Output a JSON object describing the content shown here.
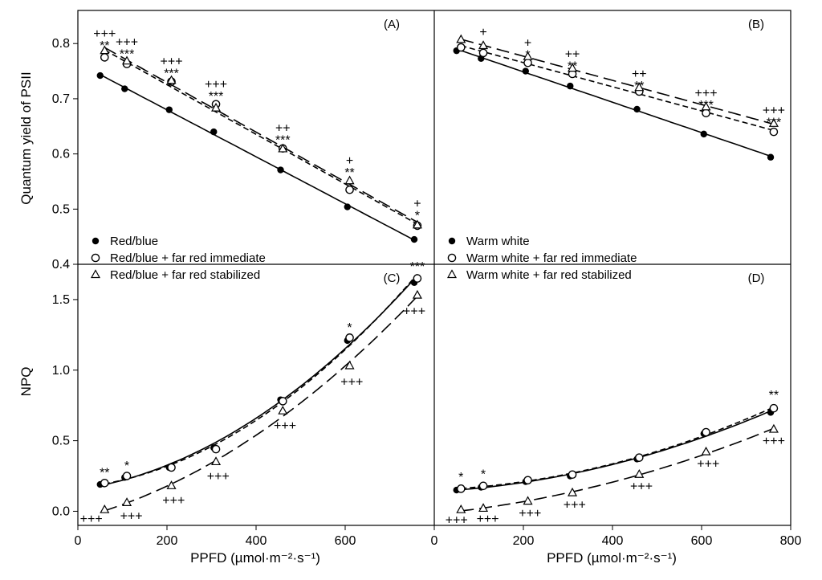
{
  "figure": {
    "ylabel_top": "Quantum yield of PSII",
    "ylabel_bottom": "NPQ",
    "xlabel_left": "PPFD (µmol·m⁻²·s⁻¹)",
    "xlabel_right": "PPFD (µmol·m⁻²·s⁻¹)",
    "x_ticks": [
      0,
      200,
      400,
      600,
      800
    ],
    "top_y_ticks": [
      0.4,
      0.5,
      0.6,
      0.7,
      0.8
    ],
    "bottom_y_ticks": [
      0.0,
      0.5,
      1.0,
      1.5
    ],
    "line_color": "#000000"
  },
  "chart_data": [
    {
      "panel": "(A)",
      "type": "scatter",
      "xlim": [
        0,
        800
      ],
      "ylim": [
        0.4,
        0.86
      ],
      "legend": "bottom-left",
      "series": [
        {
          "name": "Red/blue",
          "marker": "filled-circle",
          "line": "solid",
          "x": [
            50,
            105,
            205,
            305,
            455,
            605,
            755
          ],
          "y": [
            0.742,
            0.718,
            0.68,
            0.64,
            0.571,
            0.504,
            0.445
          ]
        },
        {
          "name": "Red/blue + far red immediate",
          "marker": "open-circle",
          "line": "short-dash",
          "x": [
            60,
            110,
            210,
            310,
            460,
            610,
            762
          ],
          "y": [
            0.775,
            0.763,
            0.731,
            0.69,
            0.61,
            0.535,
            0.47
          ]
        },
        {
          "name": "Red/blue + far red stabilized",
          "marker": "open-triangle",
          "line": "long-dash",
          "x": [
            60,
            110,
            210,
            310,
            460,
            610,
            762
          ],
          "y": [
            0.787,
            0.768,
            0.733,
            0.683,
            0.609,
            0.551,
            0.471
          ]
        }
      ],
      "annotations": [
        {
          "x": 60,
          "lines": [
            "+++",
            "**"
          ],
          "top": 0.825
        },
        {
          "x": 110,
          "lines": [
            "+++",
            "***"
          ],
          "top": 0.81
        },
        {
          "x": 210,
          "lines": [
            "+++",
            "***"
          ],
          "top": 0.775
        },
        {
          "x": 310,
          "lines": [
            "+++",
            "***"
          ],
          "top": 0.733
        },
        {
          "x": 460,
          "lines": [
            "++",
            "***"
          ],
          "top": 0.654
        },
        {
          "x": 610,
          "lines": [
            "+",
            "**"
          ],
          "top": 0.595
        },
        {
          "x": 762,
          "lines": [
            "+",
            "*"
          ],
          "top": 0.517
        }
      ]
    },
    {
      "panel": "(B)",
      "type": "scatter",
      "xlim": [
        0,
        800
      ],
      "ylim": [
        0.4,
        0.86
      ],
      "legend": "bottom-left",
      "series": [
        {
          "name": "Warm white",
          "marker": "filled-circle",
          "line": "solid",
          "x": [
            50,
            105,
            205,
            305,
            455,
            605,
            755
          ],
          "y": [
            0.787,
            0.773,
            0.75,
            0.723,
            0.681,
            0.636,
            0.594
          ]
        },
        {
          "name": "Warm white + far red immediate",
          "marker": "open-circle",
          "line": "short-dash",
          "x": [
            60,
            110,
            210,
            310,
            460,
            610,
            762
          ],
          "y": [
            0.793,
            0.783,
            0.765,
            0.745,
            0.713,
            0.674,
            0.64
          ]
        },
        {
          "name": "Warm white + far red stabilized",
          "marker": "open-triangle",
          "line": "long-dash",
          "x": [
            60,
            110,
            210,
            310,
            460,
            610,
            762
          ],
          "y": [
            0.807,
            0.796,
            0.776,
            0.755,
            0.72,
            0.685,
            0.655
          ]
        }
      ],
      "annotations": [
        {
          "x": 110,
          "lines": [
            "+"
          ],
          "top": 0.828
        },
        {
          "x": 210,
          "lines": [
            "+",
            "*"
          ],
          "top": 0.808
        },
        {
          "x": 310,
          "lines": [
            "++",
            "**"
          ],
          "top": 0.788
        },
        {
          "x": 460,
          "lines": [
            "++",
            "**"
          ],
          "top": 0.752
        },
        {
          "x": 610,
          "lines": [
            "+++",
            "***"
          ],
          "top": 0.717
        },
        {
          "x": 762,
          "lines": [
            "+++",
            "***"
          ],
          "top": 0.686
        }
      ]
    },
    {
      "panel": "(C)",
      "type": "scatter",
      "xlim": [
        0,
        800
      ],
      "ylim": [
        -0.1,
        1.75
      ],
      "series": [
        {
          "name": "Red/blue",
          "marker": "filled-circle",
          "line": "solid",
          "x": [
            50,
            105,
            205,
            305,
            455,
            605,
            755
          ],
          "y": [
            0.19,
            0.24,
            0.31,
            0.45,
            0.79,
            1.21,
            1.62
          ]
        },
        {
          "name": "Red/blue + far red immediate",
          "marker": "open-circle",
          "line": "short-dash",
          "x": [
            60,
            110,
            210,
            310,
            460,
            610,
            762
          ],
          "y": [
            0.2,
            0.25,
            0.31,
            0.44,
            0.78,
            1.23,
            1.65
          ]
        },
        {
          "name": "Red/blue + far red stabilized",
          "marker": "open-triangle",
          "line": "long-dash",
          "x": [
            60,
            110,
            210,
            310,
            460,
            610,
            762
          ],
          "y": [
            0.01,
            0.06,
            0.18,
            0.35,
            0.71,
            1.03,
            1.53
          ]
        }
      ],
      "annotations": [
        {
          "x": 60,
          "lines": [
            "**"
          ],
          "top": 0.3
        },
        {
          "x": 110,
          "lines": [
            "*"
          ],
          "top": 0.35
        },
        {
          "x": 610,
          "lines": [
            "*"
          ],
          "top": 1.33
        },
        {
          "x": 762,
          "lines": [
            "***"
          ],
          "top": 1.76
        },
        {
          "x": 30,
          "lines": [
            "+++"
          ],
          "top": -0.025
        },
        {
          "x": 120,
          "lines": [
            "+++"
          ],
          "top": -0.005
        },
        {
          "x": 215,
          "lines": [
            "+++"
          ],
          "top": 0.105
        },
        {
          "x": 315,
          "lines": [
            "+++"
          ],
          "top": 0.275
        },
        {
          "x": 465,
          "lines": [
            "+++"
          ],
          "top": 0.635
        },
        {
          "x": 615,
          "lines": [
            "+++"
          ],
          "top": 0.945
        },
        {
          "x": 755,
          "lines": [
            "+++"
          ],
          "top": 1.445
        }
      ]
    },
    {
      "panel": "(D)",
      "type": "scatter",
      "xlim": [
        0,
        800
      ],
      "ylim": [
        -0.1,
        1.75
      ],
      "series": [
        {
          "name": "Warm white",
          "marker": "filled-circle",
          "line": "solid",
          "x": [
            50,
            105,
            205,
            305,
            455,
            605,
            755
          ],
          "y": [
            0.15,
            0.17,
            0.21,
            0.25,
            0.37,
            0.55,
            0.7
          ]
        },
        {
          "name": "Warm white + far red immediate",
          "marker": "open-circle",
          "line": "short-dash",
          "x": [
            60,
            110,
            210,
            310,
            460,
            610,
            762
          ],
          "y": [
            0.16,
            0.18,
            0.22,
            0.26,
            0.38,
            0.56,
            0.73
          ]
        },
        {
          "name": "Warm white + far red stabilized",
          "marker": "open-triangle",
          "line": "long-dash",
          "x": [
            60,
            110,
            210,
            310,
            460,
            610,
            762
          ],
          "y": [
            0.01,
            0.02,
            0.07,
            0.13,
            0.26,
            0.42,
            0.58
          ]
        }
      ],
      "annotations": [
        {
          "x": 60,
          "lines": [
            "*"
          ],
          "top": 0.27
        },
        {
          "x": 110,
          "lines": [
            "*"
          ],
          "top": 0.29
        },
        {
          "x": 762,
          "lines": [
            "**"
          ],
          "top": 0.85
        },
        {
          "x": 50,
          "lines": [
            "+++"
          ],
          "top": -0.035
        },
        {
          "x": 120,
          "lines": [
            "+++"
          ],
          "top": -0.025
        },
        {
          "x": 215,
          "lines": [
            "+++"
          ],
          "top": 0.015
        },
        {
          "x": 315,
          "lines": [
            "+++"
          ],
          "top": 0.075
        },
        {
          "x": 465,
          "lines": [
            "+++"
          ],
          "top": 0.205
        },
        {
          "x": 615,
          "lines": [
            "+++"
          ],
          "top": 0.365
        },
        {
          "x": 762,
          "lines": [
            "+++"
          ],
          "top": 0.525
        }
      ]
    }
  ]
}
